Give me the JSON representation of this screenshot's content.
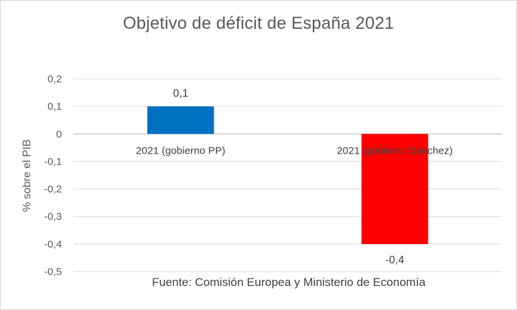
{
  "chart_data": {
    "type": "bar",
    "title": "Objetivo de déficit de España 2021",
    "ylabel": "% sobre el PIB",
    "xlabel": "",
    "categories": [
      "2021 (gobierno PP)",
      "2021 (gobierno Sánchez)"
    ],
    "values": [
      0.1,
      -0.4
    ],
    "data_labels": [
      "0,1",
      "-0,4"
    ],
    "colors": [
      "#0070c0",
      "#ff0000"
    ],
    "ylim": [
      -0.5,
      0.2
    ],
    "yticks": [
      0.2,
      0.1,
      0,
      -0.1,
      -0.2,
      -0.3,
      -0.4,
      -0.5
    ],
    "ytick_labels": [
      "0,2",
      "0,1",
      "0",
      "-0,1",
      "-0,2",
      "-0,3",
      "-0,4",
      "-0,5"
    ],
    "grid": true,
    "legend": "none"
  },
  "source_note": "Fuente: Comisión Europea y Ministerio de Economía"
}
